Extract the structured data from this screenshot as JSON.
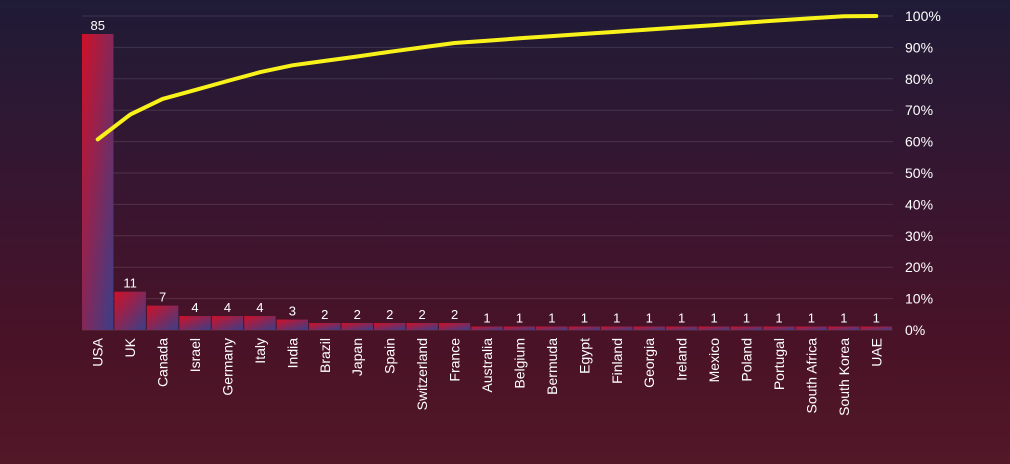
{
  "chart_data": {
    "type": "bar",
    "title": "",
    "xlabel": "",
    "ylabel": "",
    "ylim": [
      0,
      85
    ],
    "y2lim": [
      0,
      100
    ],
    "grid": true,
    "categories": [
      "USA",
      "UK",
      "Canada",
      "Israel",
      "Germany",
      "Italy",
      "India",
      "Brazil",
      "Japan",
      "Spain",
      "Switzerland",
      "France",
      "Australia",
      "Belgium",
      "Bermuda",
      "Egypt",
      "Finland",
      "Georgia",
      "Ireland",
      "Mexico",
      "Poland",
      "Portugal",
      "South Africa",
      "South Korea",
      "UAE"
    ],
    "series": [
      {
        "type": "bar",
        "values": [
          85,
          11,
          7,
          4,
          4,
          4,
          3,
          2,
          2,
          2,
          2,
          2,
          1,
          1,
          1,
          1,
          1,
          1,
          1,
          1,
          1,
          1,
          1,
          1,
          1
        ]
      },
      {
        "type": "line",
        "axis": "right",
        "unit": "%",
        "values": [
          60.7,
          68.6,
          73.6,
          76.4,
          79.3,
          82.1,
          84.3,
          85.7,
          87.1,
          88.6,
          90.0,
          91.4,
          92.1,
          92.9,
          93.6,
          94.3,
          95.0,
          95.7,
          96.4,
          97.1,
          97.9,
          98.6,
          99.3,
          99.9,
          100
        ]
      }
    ],
    "y2_ticks": [
      "100%",
      "90%",
      "80%",
      "70%",
      "60%",
      "50%",
      "40%",
      "30%",
      "20%",
      "10%",
      "0%"
    ],
    "colors": {
      "bar_top": "#d01028",
      "bar_bottom": "#3a3f88",
      "line": "#f8f21a",
      "text": "#ffffff"
    }
  }
}
